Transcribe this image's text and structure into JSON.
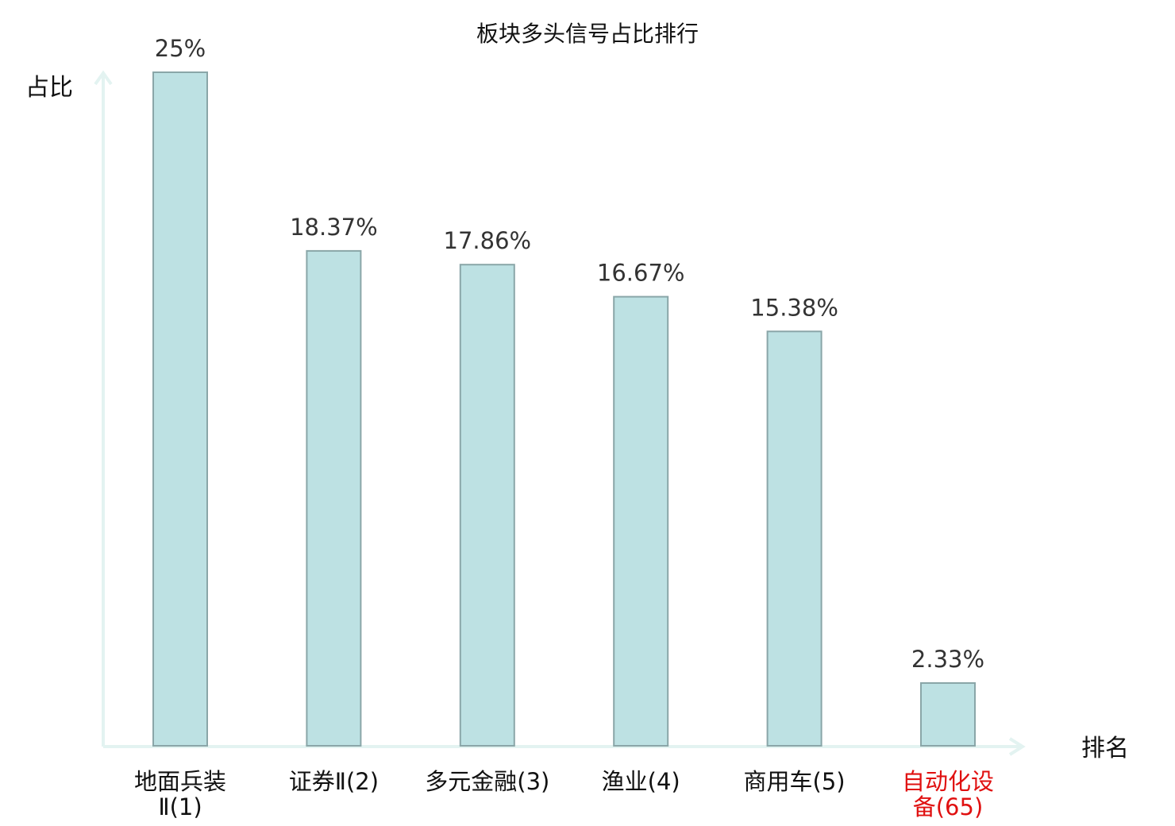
{
  "chart_data": {
    "type": "bar",
    "title": "板块多头信号占比排行",
    "xlabel": "排名",
    "ylabel": "占比",
    "ylim": [
      0,
      25
    ],
    "categories": [
      [
        "地面兵装",
        "Ⅱ(1)"
      ],
      [
        "证券Ⅱ(2)"
      ],
      [
        "多元金融(3)"
      ],
      [
        "渔业(4)"
      ],
      [
        "商用车(5)"
      ],
      [
        "自动化设",
        "备(65)"
      ]
    ],
    "highlight_index": 5,
    "values": [
      25,
      18.37,
      17.86,
      16.67,
      15.38,
      2.33
    ],
    "value_labels": [
      "25%",
      "18.37%",
      "17.86%",
      "16.67%",
      "15.38%",
      "2.33%"
    ],
    "colors": {
      "bar_fill": "#bde1e3",
      "bar_stroke": "#8aa6a8",
      "axis": "#e3f3f1",
      "highlight_label": "#e01010"
    },
    "grid": false
  }
}
